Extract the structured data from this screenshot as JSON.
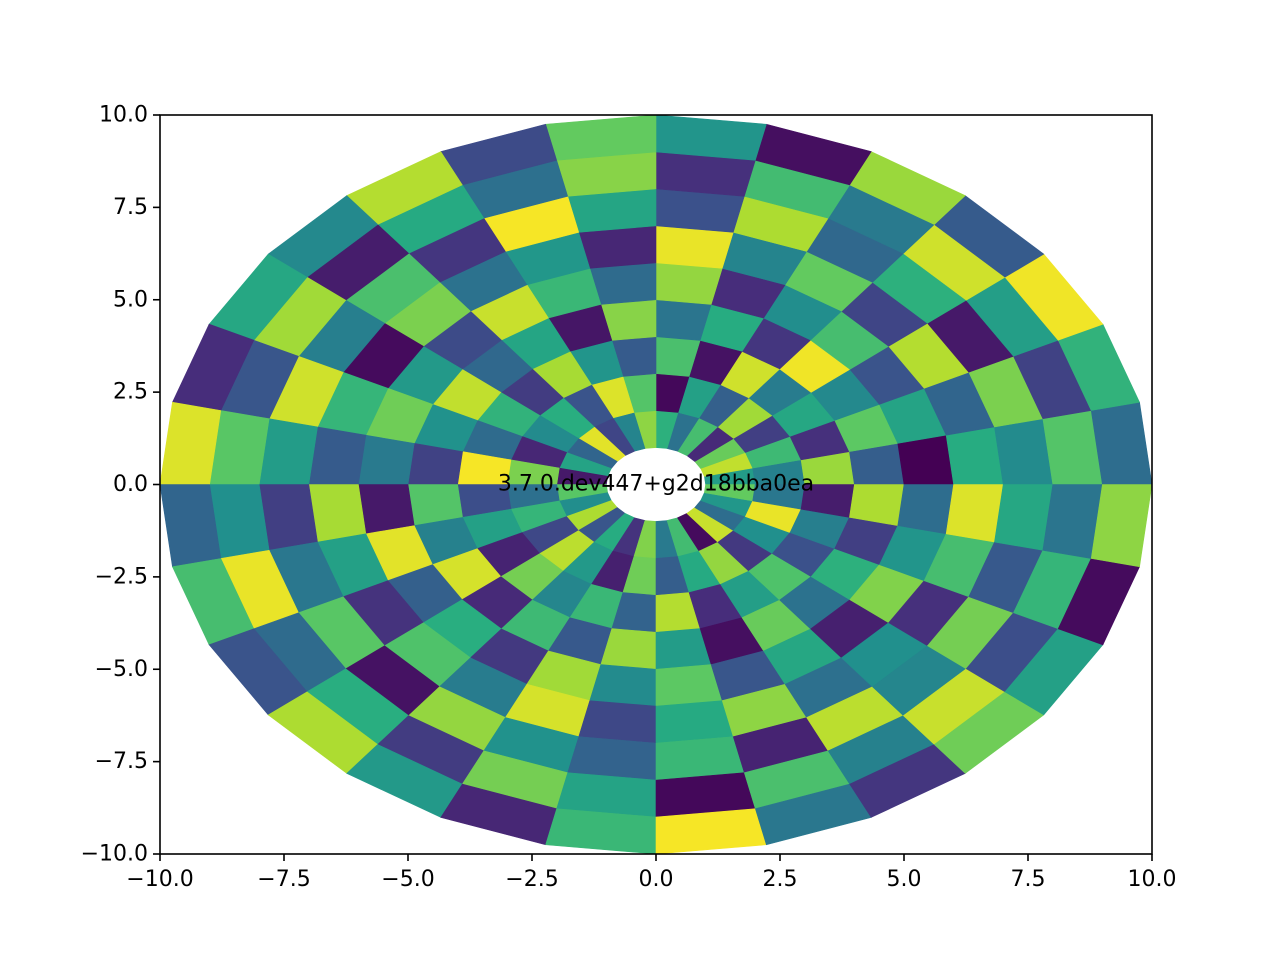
{
  "chart_data": {
    "type": "heatmap",
    "subtype": "polar-mesh",
    "title": "",
    "xlabel": "",
    "ylabel": "",
    "annotation": "3.7.0.dev447+g2d18bba0ea",
    "xlim": [
      -10,
      10
    ],
    "ylim": [
      -10,
      10
    ],
    "x_ticks": [
      -10.0,
      -7.5,
      -5.0,
      -2.5,
      0.0,
      2.5,
      5.0,
      7.5,
      10.0
    ],
    "y_ticks": [
      -10.0,
      -7.5,
      -5.0,
      -2.5,
      0.0,
      2.5,
      5.0,
      7.5,
      10.0
    ],
    "x_tick_labels": [
      "−10.0",
      "−7.5",
      "−5.0",
      "−2.5",
      "0.0",
      "2.5",
      "5.0",
      "7.5",
      "10.0"
    ],
    "y_tick_labels": [
      "−10.0",
      "−7.5",
      "−5.0",
      "−2.5",
      "0.0",
      "2.5",
      "5.0",
      "7.5",
      "10.0"
    ],
    "grid": false,
    "colormap": "viridis",
    "color_scale": [
      0,
      1
    ],
    "radii": [
      1,
      2,
      3,
      4,
      5,
      6,
      7,
      8,
      9,
      10
    ],
    "n_angles": 28,
    "values": [
      [
        0.55,
        0.91,
        0.77,
        0.12,
        0.7,
        0.38,
        0.64,
        0.83,
        0.45,
        0.21,
        0.96,
        0.33,
        0.58,
        0.07,
        0.74,
        0.49,
        0.88,
        0.27,
        0.62,
        0.15,
        0.81,
        0.41,
        0.69,
        0.03,
        0.92,
        0.36,
        0.53,
        0.76
      ],
      [
        0.44,
        0.68,
        0.19,
        0.86,
        0.31,
        0.57,
        0.02,
        0.73,
        0.95,
        0.26,
        0.63,
        0.48,
        0.11,
        0.8,
        0.37,
        0.66,
        0.22,
        0.9,
        0.54,
        0.09,
        0.78,
        0.3,
        0.61,
        0.84,
        0.17,
        0.5,
        0.97,
        0.4
      ],
      [
        0.85,
        0.14,
        0.6,
        0.42,
        0.93,
        0.05,
        0.71,
        0.29,
        0.52,
        0.87,
        0.18,
        0.65,
        0.35,
        0.99,
        0.24,
        0.57,
        0.1,
        0.79,
        0.46,
        0.67,
        0.32,
        0.89,
        0.13,
        0.56,
        0.72,
        0.25,
        0.43,
        0.08
      ],
      [
        0.3,
        0.75,
        0.47,
        0.98,
        0.16,
        0.62,
        0.39,
        0.82,
        0.06,
        0.59,
        0.34,
        0.91,
        0.51,
        0.2,
        0.73,
        0.44,
        0.94,
        0.12,
        0.68,
        0.28,
        0.85,
        0.55,
        0.04,
        0.77,
        0.38,
        0.64,
        0.19,
        0.88
      ],
      [
        0.0,
        0.58,
        0.26,
        0.7,
        0.49,
        0.13,
        0.84,
        0.35,
        0.67,
        0.92,
        0.23,
        0.54,
        0.78,
        0.41,
        0.07,
        0.96,
        0.31,
        0.63,
        0.17,
        0.86,
        0.48,
        0.75,
        0.27,
        0.6,
        0.09,
        0.81,
        0.52,
        0.36
      ],
      [
        0.62,
        0.33,
        0.89,
        0.21,
        0.76,
        0.45,
        0.97,
        0.11,
        0.53,
        0.38,
        0.8,
        0.03,
        0.66,
        0.29,
        0.87,
        0.57,
        0.15,
        0.72,
        0.42,
        0.94,
        0.22,
        0.61,
        0.83,
        0.37,
        0.5,
        0.14,
        0.7,
        0.95
      ],
      [
        0.48,
        0.8,
        0.07,
        0.64,
        0.34,
        0.88,
        0.25,
        0.59,
        0.99,
        0.16,
        0.71,
        0.43,
        0.93,
        0.55,
        0.19,
        0.4,
        0.74,
        0.05,
        0.84,
        0.51,
        0.32,
        0.67,
        0.1,
        0.9,
        0.46,
        0.79,
        0.28,
        0.6
      ],
      [
        0.73,
        0.2,
        0.56,
        0.93,
        0.41,
        0.69,
        0.14,
        0.82,
        0.37,
        0.61,
        0.08,
        0.86,
        0.27,
        0.74,
        0.5,
        0.97,
        0.35,
        0.63,
        0.18,
        0.79,
        0.58,
        0.02,
        0.71,
        0.44,
        0.92,
        0.24,
        0.66,
        0.39
      ],
      [
        0.36,
        0.65,
        0.98,
        0.29,
        0.85,
        0.04,
        0.52,
        0.76,
        0.23,
        0.89,
        0.47,
        0.6,
        0.13,
        0.95,
        0.33,
        0.7,
        0.26,
        0.88,
        0.54,
        0.11,
        0.67,
        0.99,
        0.4,
        0.16,
        0.78,
        0.57,
        0.03,
        0.83
      ]
    ]
  }
}
